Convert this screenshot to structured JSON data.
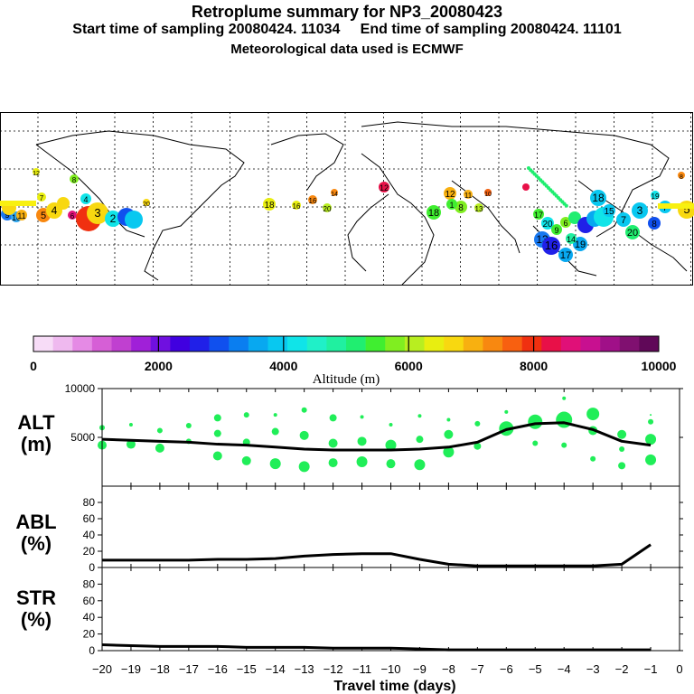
{
  "header": {
    "title": "Retroplume summary for NP3_20080423",
    "start_label": "Start time of sampling 20080424. 11034",
    "end_label": "End time of sampling 20080424. 11101",
    "met_label": "Meteorological data used is ECMWF"
  },
  "map": {
    "description_labels": [
      "1",
      "2",
      "3",
      "4",
      "5",
      "6",
      "7",
      "8",
      "9",
      "10",
      "11",
      "12",
      "13",
      "14",
      "15",
      "16",
      "17",
      "18",
      "19",
      "20"
    ]
  },
  "colorbar": {
    "ticks": [
      0,
      2000,
      4000,
      6000,
      8000,
      10000
    ],
    "tick_labels": [
      "0",
      "2000",
      "4000",
      "6000",
      "8000",
      "10000"
    ],
    "label": "Altitude (m)",
    "colors": [
      "#f7dcf7",
      "#efb9ef",
      "#e58ae5",
      "#d65fd6",
      "#c040d0",
      "#a020d8",
      "#7010e0",
      "#4000e0",
      "#2020e8",
      "#1050ee",
      "#0a7ef0",
      "#08a8f0",
      "#08c8f0",
      "#10e4e8",
      "#20f0c8",
      "#20f0a0",
      "#20ee70",
      "#40ee30",
      "#80ee20",
      "#b8ee20",
      "#e8ee10",
      "#f8d810",
      "#f8b010",
      "#f88810",
      "#f86010",
      "#f03010",
      "#e81048",
      "#e01078",
      "#c81090",
      "#a01088",
      "#801070",
      "#600858"
    ]
  },
  "chart_data": [
    {
      "type": "line",
      "name": "ALT",
      "ylabel": "ALT (m)",
      "ylabel_line1": "ALT",
      "ylabel_line2": "(m)",
      "ylim": [
        0,
        10000
      ],
      "yticks": [
        5000,
        10000
      ],
      "ytick_labels": [
        "5000",
        "10000"
      ],
      "x": [
        -20,
        -19,
        -18,
        -17,
        -16,
        -15,
        -14,
        -13,
        -12,
        -11,
        -10,
        -9,
        -8,
        -7,
        -6,
        -5,
        -4,
        -3,
        -2,
        -1
      ],
      "values": [
        4800,
        4700,
        4600,
        4500,
        4300,
        4200,
        4000,
        3800,
        3700,
        3700,
        3700,
        3800,
        4000,
        4500,
        5800,
        6400,
        6500,
        5800,
        4600,
        4200
      ]
    },
    {
      "type": "line",
      "name": "ABL",
      "ylabel": "ABL (%)",
      "ylabel_line1": "ABL",
      "ylabel_line2": "(%)",
      "ylim": [
        0,
        100
      ],
      "yticks": [
        0,
        20,
        40,
        60,
        80
      ],
      "ytick_labels": [
        "0",
        "20",
        "40",
        "60",
        "80"
      ],
      "x": [
        -20,
        -19,
        -18,
        -17,
        -16,
        -15,
        -14,
        -13,
        -12,
        -11,
        -10,
        -9,
        -8,
        -7,
        -6,
        -5,
        -4,
        -3,
        -2,
        -1
      ],
      "values": [
        9,
        9,
        9,
        9,
        10,
        10,
        11,
        14,
        16,
        17,
        17,
        10,
        4,
        2,
        2,
        2,
        2,
        2,
        4,
        28
      ]
    },
    {
      "type": "line",
      "name": "STR",
      "ylabel": "STR (%)",
      "ylabel_line1": "STR",
      "ylabel_line2": "(%)",
      "ylim": [
        0,
        100
      ],
      "yticks": [
        0,
        20,
        40,
        60,
        80
      ],
      "ytick_labels": [
        "0",
        "20",
        "40",
        "60",
        "80"
      ],
      "x": [
        -20,
        -19,
        -18,
        -17,
        -16,
        -15,
        -14,
        -13,
        -12,
        -11,
        -10,
        -9,
        -8,
        -7,
        -6,
        -5,
        -4,
        -3,
        -2,
        -1
      ],
      "values": [
        7,
        6,
        5,
        5,
        5,
        4,
        4,
        4,
        3,
        3,
        3,
        2,
        1,
        1,
        1,
        1,
        1,
        1,
        1,
        1
      ]
    }
  ],
  "xaxis": {
    "label": "Travel time (days)",
    "ticks": [
      -20,
      -19,
      -18,
      -17,
      -16,
      -15,
      -14,
      -13,
      -12,
      -11,
      -10,
      -9,
      -8,
      -7,
      -6,
      -5,
      -4,
      -3,
      -2,
      -1,
      0
    ],
    "tick_labels": [
      "−20",
      "−19",
      "−18",
      "−17",
      "−16",
      "−15",
      "−14",
      "−13",
      "−12",
      "−11",
      "−10",
      "−9",
      "−8",
      "−7",
      "−6",
      "−5",
      "−4",
      "−3",
      "−2",
      "−1",
      "0"
    ]
  }
}
